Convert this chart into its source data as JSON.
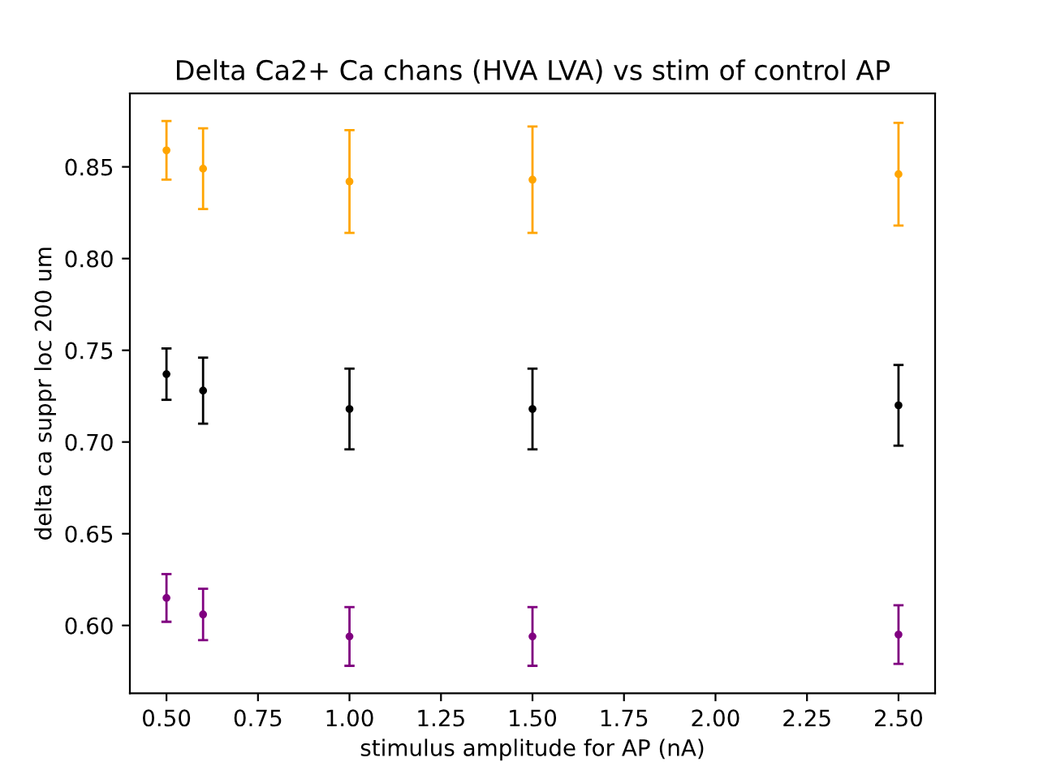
{
  "chart_data": {
    "type": "scatter",
    "title": "Delta Ca2+ Ca chans (HVA LVA) vs stim of control AP",
    "xlabel": "stimulus amplitude for AP (nA)",
    "ylabel": "delta ca suppr loc 200 um",
    "x": [
      0.5,
      0.6,
      1.0,
      1.5,
      2.5
    ],
    "series": [
      {
        "color": "#ffa500",
        "values": [
          0.859,
          0.849,
          0.842,
          0.843,
          0.846
        ],
        "errors": [
          0.016,
          0.022,
          0.028,
          0.029,
          0.028
        ]
      },
      {
        "color": "#000000",
        "values": [
          0.737,
          0.728,
          0.718,
          0.718,
          0.72
        ],
        "errors": [
          0.014,
          0.018,
          0.022,
          0.022,
          0.022
        ]
      },
      {
        "color": "#800080",
        "values": [
          0.615,
          0.606,
          0.594,
          0.594,
          0.595
        ],
        "errors": [
          0.013,
          0.014,
          0.016,
          0.016,
          0.016
        ]
      }
    ],
    "marker": "circle",
    "grid": false,
    "legend": false,
    "xlim": [
      0.4,
      2.6
    ],
    "ylim": [
      0.563,
      0.89
    ],
    "xticks": [
      {
        "value": 0.5,
        "label": "0.50"
      },
      {
        "value": 0.75,
        "label": "0.75"
      },
      {
        "value": 1.0,
        "label": "1.00"
      },
      {
        "value": 1.25,
        "label": "1.25"
      },
      {
        "value": 1.5,
        "label": "1.50"
      },
      {
        "value": 1.75,
        "label": "1.75"
      },
      {
        "value": 2.0,
        "label": "2.00"
      },
      {
        "value": 2.25,
        "label": "2.25"
      },
      {
        "value": 2.5,
        "label": "2.50"
      }
    ],
    "yticks": [
      {
        "value": 0.6,
        "label": "0.60"
      },
      {
        "value": 0.65,
        "label": "0.65"
      },
      {
        "value": 0.7,
        "label": "0.70"
      },
      {
        "value": 0.75,
        "label": "0.75"
      },
      {
        "value": 0.8,
        "label": "0.80"
      },
      {
        "value": 0.85,
        "label": "0.85"
      }
    ]
  }
}
